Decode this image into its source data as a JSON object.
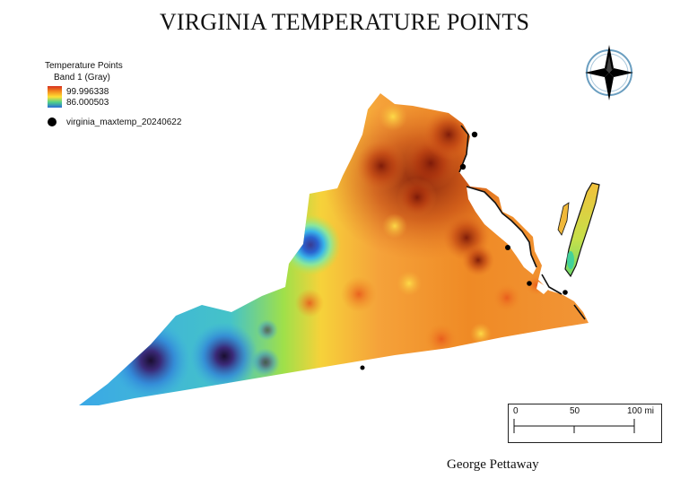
{
  "title": "VIRGINIA TEMPERATURE POINTS",
  "legend": {
    "group_title": "Temperature Points",
    "band_label": "Band 1 (Gray)",
    "max_value": "99.996338",
    "min_value": "86.000503",
    "points_layer": "virginia_maxtemp_20240622"
  },
  "scalebar": {
    "labels": [
      "0",
      "50",
      "100 mi"
    ]
  },
  "author": "George Pettaway",
  "colors": {
    "hot": "#8b1a0a",
    "warm": "#f07a1e",
    "mild": "#ffd23a",
    "cool": "#7fe04c",
    "cold": "#2a9be0",
    "coldest": "#2a1a4a",
    "points": "#000000"
  },
  "icons": [
    "north-arrow-icon",
    "temperature-point-icon"
  ]
}
